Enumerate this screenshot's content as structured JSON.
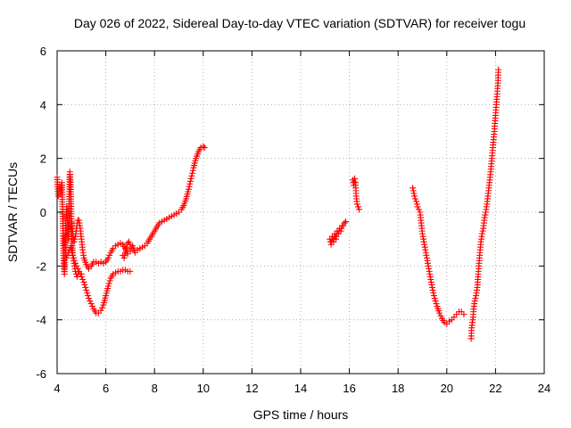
{
  "chart_data": {
    "type": "scatter",
    "title": "Day 026 of 2022, Sidereal Day-to-day VTEC variation (SDTVAR) for receiver togu",
    "xlabel": "GPS time / hours",
    "ylabel": "SDTVAR / TECUs",
    "xlim": [
      4,
      24
    ],
    "ylim": [
      -6,
      6
    ],
    "xticks": [
      "4",
      "6",
      "8",
      "10",
      "12",
      "14",
      "16",
      "18",
      "20",
      "22",
      "24"
    ],
    "yticks": [
      "-6",
      "-4",
      "-2",
      "0",
      "2",
      "4",
      "6"
    ],
    "grid": true,
    "marker": "plus",
    "color": "#ff0000",
    "series": [
      {
        "name": "togu",
        "segments": [
          [
            [
              4.0,
              1.3
            ],
            [
              4.05,
              0.6
            ],
            [
              4.12,
              0.7
            ],
            [
              4.2,
              1.1
            ],
            [
              4.24,
              -0.6
            ],
            [
              4.27,
              -1.8
            ],
            [
              4.3,
              -2.3
            ],
            [
              4.33,
              -1.6
            ],
            [
              4.36,
              -0.4
            ],
            [
              4.4,
              0.2
            ],
            [
              4.43,
              -0.4
            ],
            [
              4.46,
              -1.0
            ],
            [
              4.5,
              0.4
            ],
            [
              4.52,
              1.5
            ],
            [
              4.55,
              1.2
            ],
            [
              4.57,
              0.4
            ],
            [
              4.6,
              -0.8
            ],
            [
              4.64,
              -1.6
            ],
            [
              4.7,
              -1.9
            ],
            [
              4.75,
              -2.2
            ],
            [
              4.82,
              -2.4
            ],
            [
              4.9,
              -2.2
            ],
            [
              5.0,
              -2.3
            ]
          ],
          [
            [
              4.3,
              -0.9
            ],
            [
              4.34,
              -1.4
            ],
            [
              4.38,
              -1.7
            ],
            [
              4.44,
              -1.6
            ],
            [
              4.5,
              -1.4
            ],
            [
              4.56,
              -1.3
            ],
            [
              4.62,
              -1.5
            ],
            [
              4.7,
              -1.8
            ],
            [
              4.8,
              -2.0
            ],
            [
              4.9,
              -2.2
            ],
            [
              5.0,
              -2.4
            ],
            [
              5.1,
              -2.6
            ],
            [
              5.2,
              -2.9
            ],
            [
              5.3,
              -3.2
            ],
            [
              5.4,
              -3.4
            ],
            [
              5.5,
              -3.6
            ],
            [
              5.6,
              -3.75
            ],
            [
              5.7,
              -3.75
            ],
            [
              5.8,
              -3.65
            ],
            [
              5.9,
              -3.45
            ],
            [
              6.0,
              -3.1
            ],
            [
              6.1,
              -2.75
            ],
            [
              6.2,
              -2.45
            ],
            [
              6.3,
              -2.3
            ],
            [
              6.4,
              -2.25
            ],
            [
              6.5,
              -2.2
            ],
            [
              6.6,
              -2.2
            ],
            [
              6.7,
              -2.15
            ],
            [
              6.8,
              -2.15
            ],
            [
              6.9,
              -2.2
            ],
            [
              7.0,
              -2.2
            ]
          ],
          [
            [
              4.6,
              -0.4
            ],
            [
              4.65,
              -0.8
            ],
            [
              4.7,
              -1.1
            ],
            [
              4.75,
              -0.9
            ],
            [
              4.8,
              -0.6
            ],
            [
              4.85,
              -0.3
            ],
            [
              4.9,
              -0.3
            ],
            [
              4.95,
              -0.6
            ],
            [
              5.0,
              -1.0
            ],
            [
              5.05,
              -1.4
            ],
            [
              5.1,
              -1.7
            ],
            [
              5.2,
              -1.95
            ],
            [
              5.3,
              -2.1
            ],
            [
              5.4,
              -2.0
            ],
            [
              5.5,
              -1.85
            ],
            [
              5.6,
              -1.85
            ],
            [
              5.7,
              -1.9
            ],
            [
              5.8,
              -1.85
            ],
            [
              5.9,
              -1.9
            ],
            [
              6.0,
              -1.85
            ],
            [
              6.1,
              -1.7
            ],
            [
              6.2,
              -1.5
            ],
            [
              6.3,
              -1.35
            ],
            [
              6.4,
              -1.25
            ],
            [
              6.5,
              -1.2
            ],
            [
              6.6,
              -1.15
            ],
            [
              6.7,
              -1.2
            ],
            [
              6.8,
              -1.35
            ],
            [
              6.9,
              -1.55
            ],
            [
              7.0,
              -1.45
            ],
            [
              7.1,
              -1.25
            ],
            [
              7.2,
              -1.5
            ],
            [
              7.3,
              -1.4
            ],
            [
              7.4,
              -1.35
            ],
            [
              7.5,
              -1.3
            ],
            [
              7.6,
              -1.25
            ],
            [
              7.7,
              -1.15
            ],
            [
              7.8,
              -1.0
            ],
            [
              7.9,
              -0.85
            ],
            [
              8.0,
              -0.7
            ],
            [
              8.1,
              -0.55
            ],
            [
              8.2,
              -0.4
            ],
            [
              8.3,
              -0.35
            ],
            [
              8.4,
              -0.3
            ],
            [
              8.5,
              -0.25
            ],
            [
              8.6,
              -0.2
            ],
            [
              8.7,
              -0.15
            ],
            [
              8.8,
              -0.1
            ],
            [
              8.9,
              -0.05
            ],
            [
              9.0,
              0.0
            ],
            [
              9.1,
              0.1
            ],
            [
              9.2,
              0.25
            ],
            [
              9.3,
              0.5
            ],
            [
              9.4,
              0.85
            ],
            [
              9.5,
              1.25
            ],
            [
              9.6,
              1.65
            ],
            [
              9.7,
              2.0
            ],
            [
              9.8,
              2.25
            ],
            [
              9.9,
              2.4
            ],
            [
              10.0,
              2.45
            ],
            [
              10.05,
              2.4
            ]
          ],
          [
            [
              6.7,
              -1.6
            ],
            [
              6.75,
              -1.7
            ],
            [
              6.8,
              -1.5
            ],
            [
              6.85,
              -1.3
            ],
            [
              6.9,
              -1.15
            ],
            [
              6.95,
              -1.1
            ],
            [
              7.0,
              -1.2
            ]
          ],
          [
            [
              15.2,
              -1.0
            ],
            [
              15.25,
              -1.2
            ],
            [
              15.3,
              -0.9
            ],
            [
              15.35,
              -1.1
            ],
            [
              15.4,
              -0.8
            ],
            [
              15.45,
              -1.0
            ],
            [
              15.5,
              -0.7
            ],
            [
              15.55,
              -0.8
            ],
            [
              15.6,
              -0.6
            ],
            [
              15.65,
              -0.7
            ],
            [
              15.7,
              -0.5
            ],
            [
              15.75,
              -0.5
            ],
            [
              15.8,
              -0.4
            ],
            [
              15.85,
              -0.35
            ]
          ],
          [
            [
              16.15,
              1.2
            ],
            [
              16.18,
              1.0
            ],
            [
              16.22,
              1.25
            ],
            [
              16.25,
              1.1
            ],
            [
              16.28,
              0.6
            ],
            [
              16.32,
              0.3
            ],
            [
              16.36,
              0.2
            ],
            [
              16.4,
              0.1
            ]
          ],
          [
            [
              18.6,
              0.9
            ],
            [
              18.65,
              0.7
            ],
            [
              18.7,
              0.5
            ],
            [
              18.75,
              0.4
            ],
            [
              18.8,
              0.2
            ],
            [
              18.85,
              0.1
            ],
            [
              18.9,
              0.0
            ],
            [
              18.95,
              -0.4
            ],
            [
              19.0,
              -0.8
            ],
            [
              19.1,
              -1.3
            ],
            [
              19.2,
              -1.8
            ],
            [
              19.3,
              -2.3
            ],
            [
              19.4,
              -2.8
            ],
            [
              19.5,
              -3.2
            ],
            [
              19.6,
              -3.5
            ],
            [
              19.7,
              -3.75
            ],
            [
              19.8,
              -3.95
            ],
            [
              19.9,
              -4.1
            ],
            [
              20.0,
              -4.15
            ],
            [
              20.1,
              -4.05
            ],
            [
              20.2,
              -4.0
            ],
            [
              20.3,
              -3.9
            ],
            [
              20.4,
              -3.8
            ],
            [
              20.5,
              -3.7
            ],
            [
              20.6,
              -3.7
            ],
            [
              20.7,
              -3.8
            ]
          ],
          [
            [
              21.0,
              -4.7
            ],
            [
              21.02,
              -4.3
            ],
            [
              21.05,
              -4.1
            ],
            [
              21.08,
              -3.9
            ],
            [
              21.1,
              -3.6
            ],
            [
              21.15,
              -3.3
            ],
            [
              21.2,
              -3.1
            ],
            [
              21.25,
              -2.8
            ],
            [
              21.3,
              -2.2
            ],
            [
              21.35,
              -1.6
            ],
            [
              21.4,
              -1.1
            ],
            [
              21.45,
              -0.8
            ],
            [
              21.5,
              -0.6
            ],
            [
              21.55,
              -0.2
            ],
            [
              21.6,
              0.0
            ],
            [
              21.65,
              0.3
            ],
            [
              21.7,
              0.7
            ],
            [
              21.75,
              1.1
            ],
            [
              21.8,
              1.5
            ],
            [
              21.85,
              2.0
            ],
            [
              21.9,
              2.5
            ],
            [
              21.95,
              3.0
            ],
            [
              22.0,
              3.6
            ],
            [
              22.05,
              4.2
            ],
            [
              22.1,
              4.8
            ],
            [
              22.12,
              5.3
            ]
          ]
        ]
      }
    ]
  }
}
